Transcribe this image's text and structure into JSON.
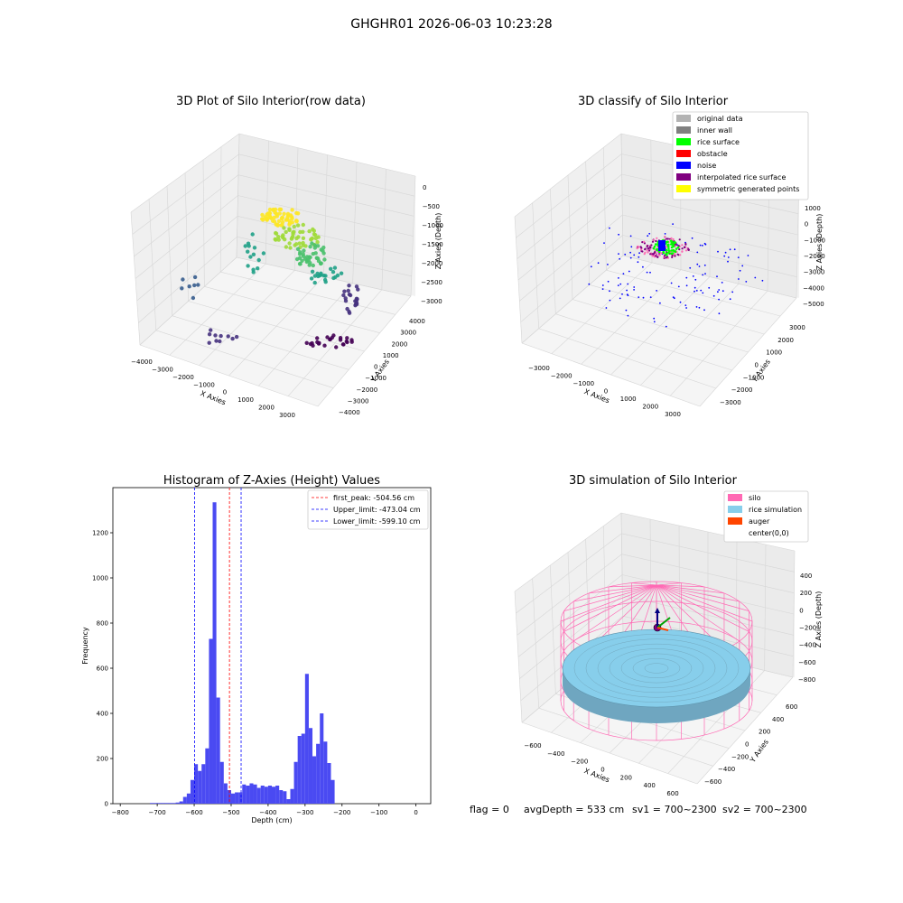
{
  "figure": {
    "suptitle": "GHGHR01 2026-06-03 10:23:28",
    "status_text": {
      "flag": "flag = 0",
      "avg_depth": "avgDepth = 533 cm",
      "sv1": "sv1 = 700~2300",
      "sv2": "sv2 = 700~2300"
    }
  },
  "chart_data": [
    {
      "type": "scatter",
      "panel": "top-left",
      "projection": "3d",
      "title": "3D Plot of Silo Interior(row data)",
      "xlabel": "X Axies",
      "ylabel": "Y Axies",
      "zlabel": "Z Axies (Depth)",
      "x_ticks": [
        "−4000",
        "−3000",
        "−2000",
        "−1000",
        "0",
        "1000",
        "2000",
        "3000"
      ],
      "y_ticks": [
        "−4000",
        "−3000",
        "−2000",
        "−1000",
        "0",
        "1000",
        "2000",
        "3000",
        "4000"
      ],
      "z_ticks": [
        "0",
        "−500",
        "−1000",
        "−1500",
        "−2000",
        "−2500",
        "−3000"
      ],
      "colormap": "viridis (colored by depth)",
      "grid": true
    },
    {
      "type": "scatter",
      "panel": "top-right",
      "projection": "3d",
      "title": "3D classify of Silo Interior",
      "xlabel": "X Axies",
      "ylabel": "Y Axies",
      "zlabel": "Z Axies (Depth)",
      "x_ticks": [
        "−3000",
        "−2000",
        "−1000",
        "0",
        "1000",
        "2000",
        "3000"
      ],
      "y_ticks": [
        "−3000",
        "−2000",
        "−1000",
        "0",
        "1000",
        "2000",
        "3000"
      ],
      "z_ticks": [
        "1000",
        "0",
        "−1000",
        "−2000",
        "−3000",
        "−4000",
        "−5000"
      ],
      "legend": [
        {
          "label": "original data",
          "color": "#b3b3b3"
        },
        {
          "label": "inner wall",
          "color": "#808080"
        },
        {
          "label": "rice surface",
          "color": "#00ff00"
        },
        {
          "label": "obstacle",
          "color": "#ff0000"
        },
        {
          "label": "noise",
          "color": "#0000ff"
        },
        {
          "label": "interpolated rice surface",
          "color": "#800080"
        },
        {
          "label": "symmetric generated points",
          "color": "#ffff00"
        }
      ],
      "legend_position": "upper-right",
      "grid": true
    },
    {
      "type": "bar",
      "panel": "bottom-left",
      "title": "Histogram of Z-Axies (Height) Values",
      "xlabel": "Depth (cm)",
      "ylabel": "Frequency",
      "xlim": [
        -820,
        40
      ],
      "ylim": [
        0,
        1400
      ],
      "x_ticks": [
        "−800",
        "−700",
        "−600",
        "−500",
        "−400",
        "−300",
        "−200",
        "−100",
        "0"
      ],
      "y_ticks": [
        "0",
        "200",
        "400",
        "600",
        "800",
        "1000",
        "1200"
      ],
      "bar_color": "#4a4af2",
      "bins": {
        "left_edges": [
          -720,
          -710,
          -700,
          -690,
          -680,
          -670,
          -660,
          -650,
          -640,
          -630,
          -620,
          -610,
          -600,
          -590,
          -580,
          -570,
          -560,
          -550,
          -540,
          -530,
          -520,
          -510,
          -500,
          -490,
          -480,
          -470,
          -460,
          -450,
          -440,
          -430,
          -420,
          -410,
          -400,
          -390,
          -380,
          -370,
          -360,
          -350,
          -340,
          -330,
          -320,
          -310,
          -300,
          -290,
          -280,
          -270,
          -260,
          -250,
          -240,
          -230,
          -220,
          -210,
          -200,
          -190,
          -180,
          -170,
          -160,
          -150,
          -140,
          -130,
          -120,
          -110,
          -100,
          -90,
          -80,
          -70,
          -60,
          -50,
          -40,
          -30,
          -20,
          -10
        ],
        "width": 10,
        "counts": [
          3,
          3,
          3,
          3,
          3,
          3,
          3,
          5,
          10,
          30,
          45,
          105,
          175,
          145,
          175,
          245,
          730,
          1335,
          470,
          185,
          90,
          60,
          45,
          50,
          50,
          85,
          80,
          90,
          85,
          70,
          80,
          75,
          80,
          75,
          80,
          60,
          55,
          20,
          65,
          185,
          300,
          310,
          575,
          335,
          210,
          265,
          400,
          275,
          180,
          105,
          0,
          0,
          0,
          0,
          0,
          0,
          0,
          0,
          0,
          0,
          0,
          0,
          0,
          0,
          0,
          0,
          0,
          0,
          0,
          0,
          0,
          0
        ]
      },
      "vlines": [
        {
          "label": "first_peak: -504.56 cm",
          "x": -504.56,
          "color": "#ff0000"
        },
        {
          "label": "Upper_limit: -473.04 cm",
          "x": -473.04,
          "color": "#0000ff"
        },
        {
          "label": "Lower_limit: -599.10 cm",
          "x": -599.1,
          "color": "#0000ff"
        }
      ],
      "legend_position": "upper-right",
      "grid": false
    },
    {
      "type": "surface",
      "panel": "bottom-right",
      "projection": "3d",
      "title": "3D simulation of Silo Interior",
      "xlabel": "X Axies",
      "ylabel": "Y Axies",
      "zlabel": "Z Axies (Depth)",
      "x_ticks": [
        "−600",
        "−400",
        "−200",
        "0",
        "200",
        "400",
        "600"
      ],
      "y_ticks": [
        "−600",
        "−400",
        "−200",
        "0",
        "200",
        "400",
        "600"
      ],
      "z_ticks": [
        "400",
        "200",
        "0",
        "−200",
        "−400",
        "−600",
        "−800"
      ],
      "legend": [
        {
          "label": "silo",
          "color": "#ff69b4"
        },
        {
          "label": "rice simulation",
          "color": "#87ceeb"
        },
        {
          "label": "auger",
          "color": "#ff4500"
        },
        {
          "label": "center(0,0)",
          "color": ""
        }
      ],
      "legend_position": "upper-right",
      "grid": true
    }
  ]
}
